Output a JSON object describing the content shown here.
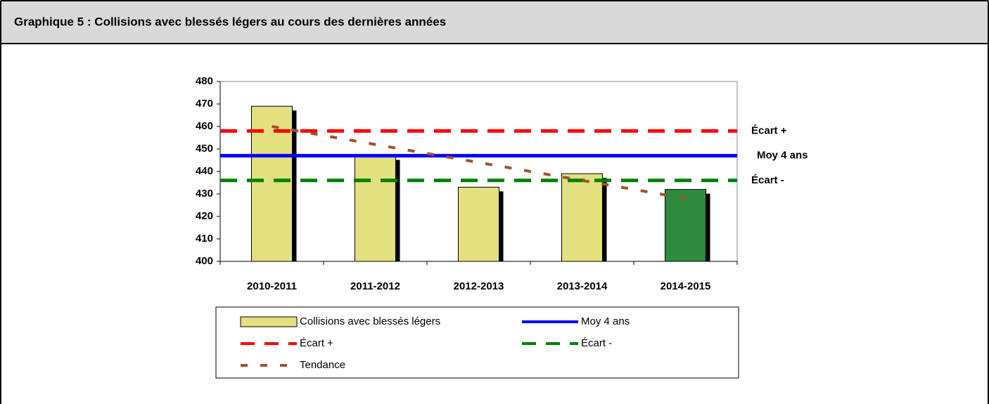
{
  "header": {
    "title": "Graphique 5 : Collisions avec blessés légers au cours des dernières années"
  },
  "chart_data": {
    "type": "bar",
    "categories": [
      "2010-2011",
      "2011-2012",
      "2012-2013",
      "2013-2014",
      "2014-2015"
    ],
    "ylim": [
      400,
      480
    ],
    "yticks": [
      400,
      410,
      420,
      430,
      440,
      450,
      460,
      470,
      480
    ],
    "series": [
      {
        "name": "Collisions avec blessés légers",
        "type": "bar",
        "colors": [
          "#e3e07f",
          "#e3e07f",
          "#e3e07f",
          "#e3e07f",
          "#2e8b3e"
        ],
        "values": [
          469,
          447,
          433,
          439,
          432
        ]
      },
      {
        "name": "Moy 4 ans",
        "type": "hline",
        "color": "#0000ff",
        "value": 447
      },
      {
        "name": "Écart +",
        "type": "hline",
        "color": "#ff0000",
        "value": 458,
        "dashed": true
      },
      {
        "name": "Écart -",
        "type": "hline",
        "color": "#008000",
        "value": 436,
        "dashed": true
      },
      {
        "name": "Tendance",
        "type": "line",
        "color": "#a0522d",
        "values": [
          460,
          452,
          444,
          436,
          428
        ],
        "dashed": true
      }
    ]
  }
}
